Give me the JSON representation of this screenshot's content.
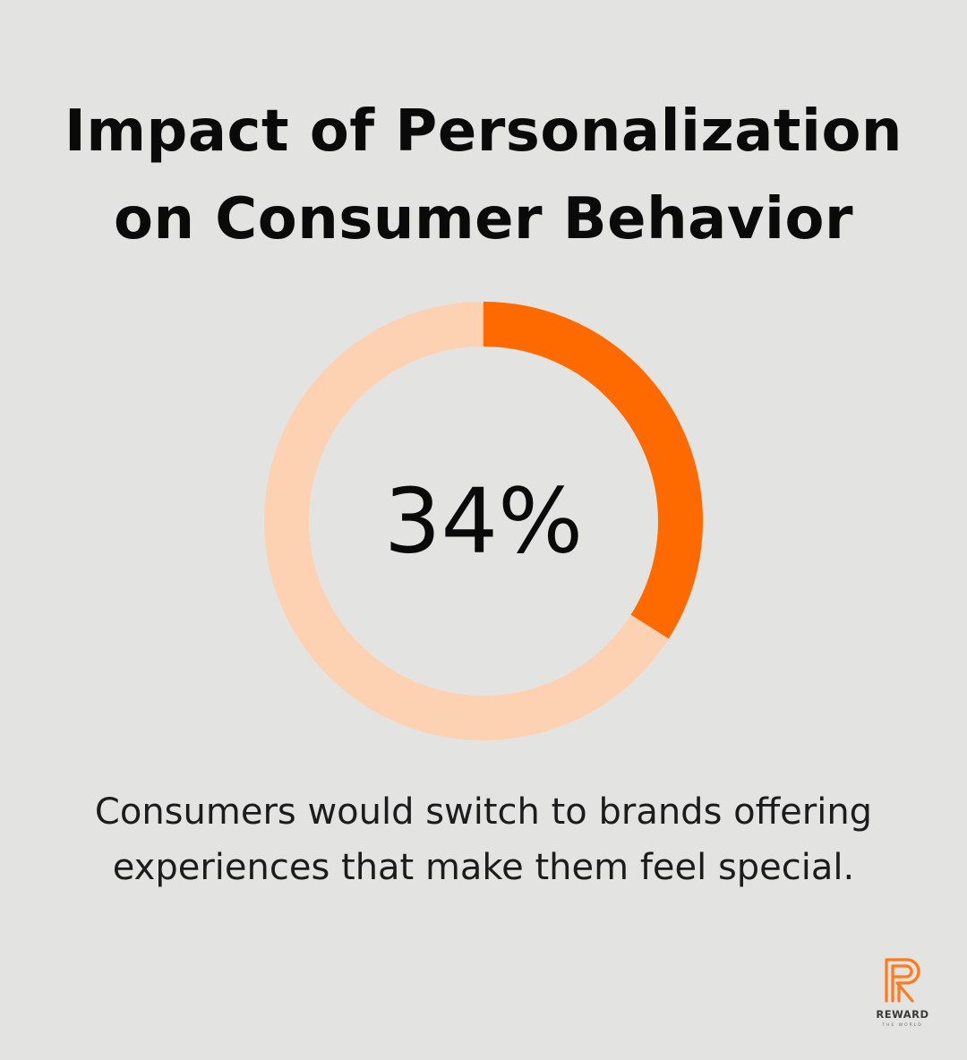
{
  "title_lines": [
    "Impact of Personalization",
    "on Consumer Behavior"
  ],
  "caption_lines": [
    "Consumers would switch to brands offering",
    "experiences that make them feel special."
  ],
  "chart_data": {
    "type": "pie",
    "style": "donut",
    "center_label": "34%",
    "slices": [
      {
        "value": 34,
        "color": "#ff6a00"
      },
      {
        "value": 66,
        "color": "#fdd2b3"
      }
    ]
  },
  "logo": {
    "wordmark": "REWARD",
    "tagline": "THE WORLD",
    "color": "#ff7a1a"
  }
}
